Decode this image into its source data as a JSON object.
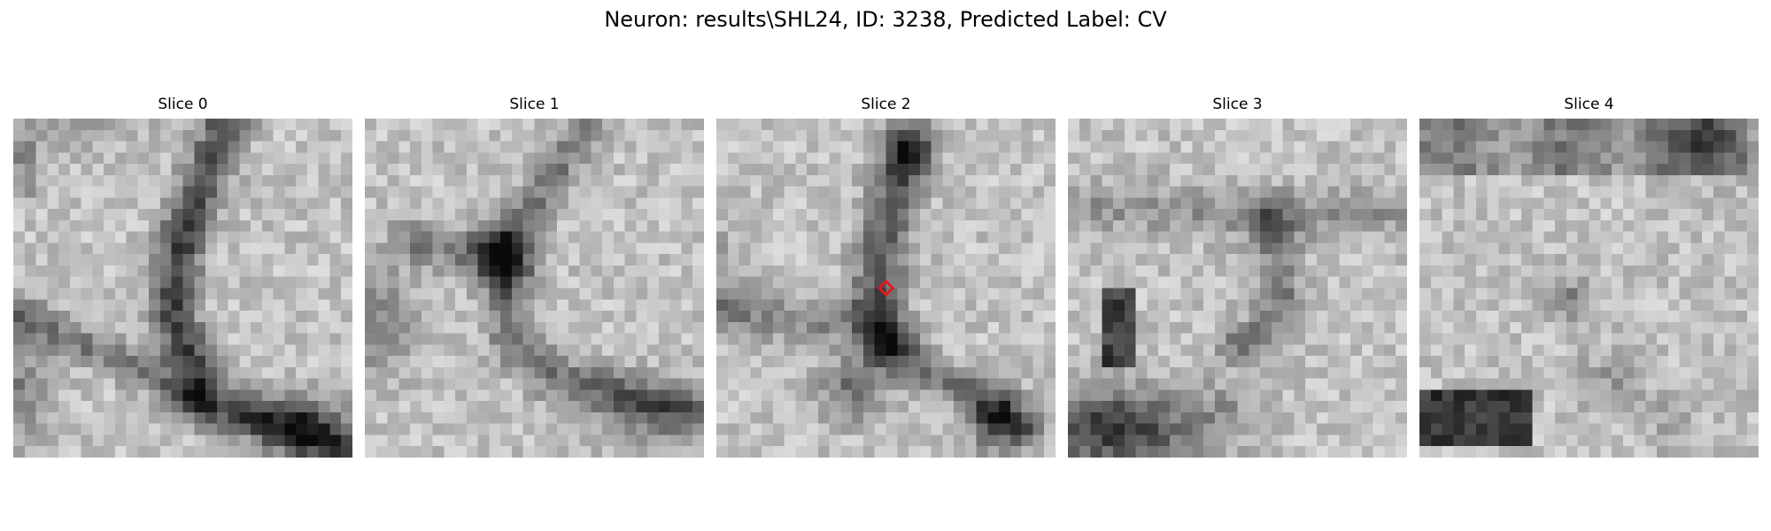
{
  "figure": {
    "title": "Neuron: results\\SHL24, ID: 3238, Predicted Label: CV"
  },
  "colormap": "gray",
  "marker": {
    "shape": "diamond-outline",
    "color": "#e8141c",
    "slice_index": 2
  },
  "slices": [
    {
      "title": "Slice 0"
    },
    {
      "title": "Slice 1"
    },
    {
      "title": "Slice 2"
    },
    {
      "title": "Slice 3"
    },
    {
      "title": "Slice 4"
    }
  ]
}
